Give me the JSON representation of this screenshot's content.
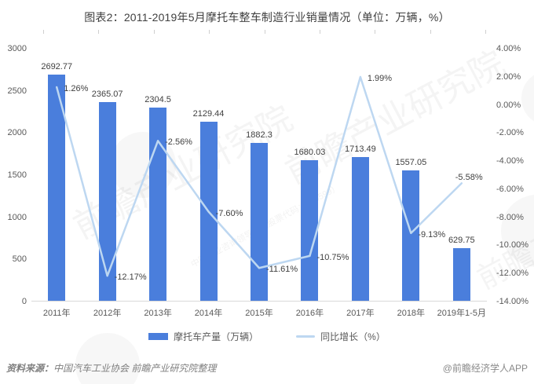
{
  "title": "图表2：2011-2019年5月摩托车整车制造行业销量情况（单位：万辆，%）",
  "chart_data": {
    "type": "combo",
    "title": "图表2：2011-2019年5月摩托车整车制造行业销量情况（单位：万辆，%）",
    "categories": [
      "2011年",
      "2012年",
      "2013年",
      "2014年",
      "2015年",
      "2016年",
      "2017年",
      "2018年",
      "2019年1-5月"
    ],
    "series": [
      {
        "name": "摩托车产量（万辆）",
        "type": "bar",
        "axis": "left",
        "values": [
          2692.77,
          2365.07,
          2304.5,
          2129.44,
          1882.3,
          1680.03,
          1713.49,
          1557.05,
          629.75
        ],
        "labels": [
          "2692.77",
          "2365.07",
          "2304.5",
          "2129.44",
          "1882.3",
          "1680.03",
          "1713.49",
          "1557.05",
          "629.75"
        ]
      },
      {
        "name": "同比增长（%）",
        "type": "line",
        "axis": "right",
        "values": [
          1.26,
          -12.17,
          -2.56,
          -7.6,
          -11.61,
          -10.75,
          1.99,
          -9.13,
          -5.58
        ],
        "labels": [
          "1.26%",
          "-12.17%",
          "-2.56%",
          "-7.60%",
          "-11.61%",
          "-10.75%",
          "1.99%",
          "-9.13%",
          "-5.58%"
        ]
      }
    ],
    "left_axis": {
      "min": 0,
      "max": 3000,
      "ticks": [
        "3000",
        "2500",
        "2000",
        "1500",
        "1000",
        "500",
        "0"
      ]
    },
    "right_axis": {
      "min": -14,
      "max": 4,
      "ticks": [
        "4.00%",
        "2.00%",
        "0.00%",
        "-2.00%",
        "-4.00%",
        "-6.00%",
        "-8.00%",
        "-10.00%",
        "-12.00%",
        "-14.00%"
      ]
    },
    "colors": {
      "bar": "#4a7edc",
      "line": "#bdd7f1"
    },
    "grid": false,
    "legend_position": "bottom"
  },
  "legend": {
    "items": [
      {
        "label": "摩托车产量（万辆）"
      },
      {
        "label": "同比增长（%）"
      }
    ]
  },
  "footer": {
    "source_prefix": "资料来源：",
    "source": "中国汽车工业协会  前瞻产业研究院整理",
    "credit": "@前瞻经济学人APP"
  },
  "watermark": {
    "text": "前瞻产业研究院",
    "sub": "中国产业咨询领导者（股票代码：839599）"
  }
}
